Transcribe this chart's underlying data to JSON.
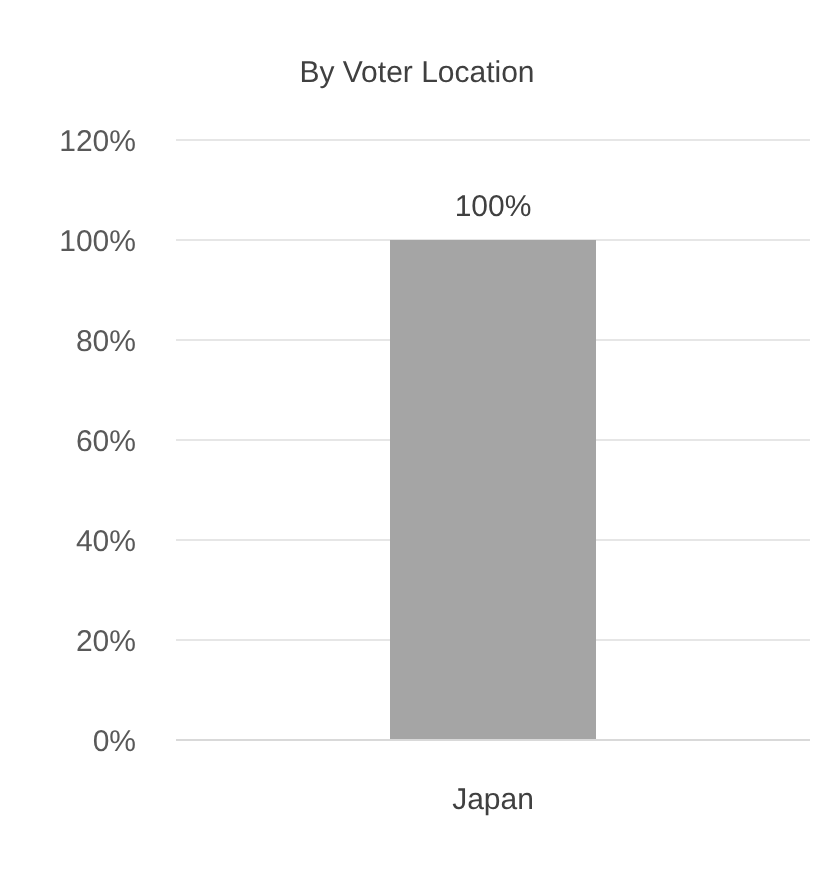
{
  "chart_data": {
    "type": "bar",
    "title": "By Voter Location",
    "categories": [
      "Japan"
    ],
    "values": [
      100
    ],
    "color": "#a5a5a5",
    "value_labels": [
      "100%"
    ],
    "ylim": [
      0,
      120
    ],
    "yticks": [
      {
        "value": 0,
        "label": "0%"
      },
      {
        "value": 20,
        "label": "20%"
      },
      {
        "value": 40,
        "label": "40%"
      },
      {
        "value": 60,
        "label": "60%"
      },
      {
        "value": 80,
        "label": "80%"
      },
      {
        "value": 100,
        "label": "100%"
      },
      {
        "value": 120,
        "label": "120%"
      }
    ],
    "grid": "y"
  }
}
